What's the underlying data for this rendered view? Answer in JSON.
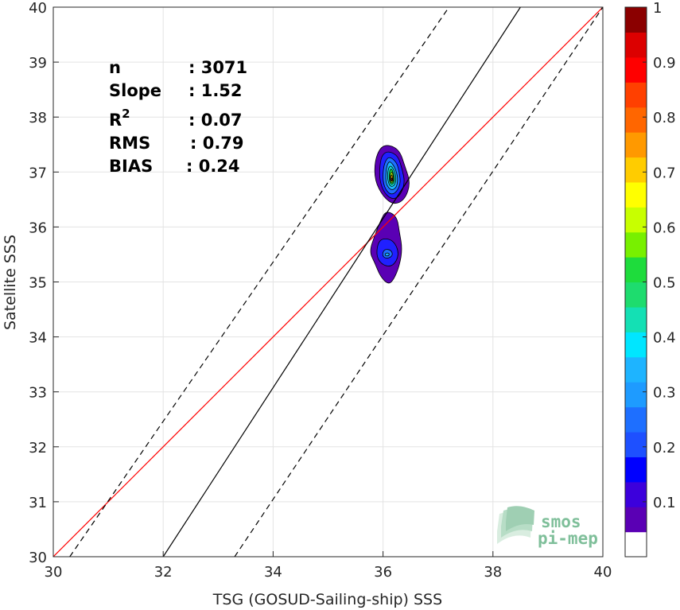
{
  "chart_data": {
    "type": "heatmap",
    "title": "",
    "xlabel": "TSG (GOSUD-Sailing-ship) SSS",
    "ylabel": "Satellite SSS",
    "xlim": [
      30,
      40
    ],
    "ylim": [
      30,
      40
    ],
    "x_ticks": [
      "30",
      "32",
      "34",
      "36",
      "38",
      "40"
    ],
    "y_ticks": [
      "30",
      "31",
      "32",
      "33",
      "34",
      "35",
      "36",
      "37",
      "38",
      "39",
      "40"
    ],
    "grid": true,
    "stats": [
      {
        "name": "n",
        "value": ": 3071"
      },
      {
        "name": "Slope",
        "value": ": 1.52"
      },
      {
        "name": "R",
        "sup": "2",
        "value": ": 0.07"
      },
      {
        "name": "RMS",
        "value": ": 0.79"
      },
      {
        "name": "BIAS",
        "value": ": 0.24"
      }
    ],
    "lines": {
      "identity": {
        "color": "#ff0000",
        "x": [
          30,
          40
        ],
        "y": [
          30,
          40
        ]
      },
      "regression": {
        "color": "#000000",
        "slope": 1.52,
        "x": [
          32.0,
          38.5
        ],
        "y": [
          30,
          40
        ]
      },
      "upper_bound": {
        "color": "#000000",
        "dash": true,
        "x": [
          30.3,
          37.2
        ],
        "y": [
          30,
          40
        ]
      },
      "lower_bound": {
        "color": "#000000",
        "dash": true,
        "x": [
          33.3,
          40.0
        ],
        "y": [
          30,
          40
        ]
      }
    },
    "density_blobs": [
      {
        "levels": [
          {
            "value": 0.05,
            "color": "#5a00b4",
            "points": [
              [
                36.1,
                37.5
              ],
              [
                36.3,
                37.4
              ],
              [
                36.4,
                37.1
              ],
              [
                36.5,
                36.8
              ],
              [
                36.4,
                36.5
              ],
              [
                36.2,
                36.4
              ],
              [
                36.0,
                36.55
              ],
              [
                35.85,
                36.85
              ],
              [
                35.85,
                37.2
              ],
              [
                35.95,
                37.45
              ]
            ]
          },
          {
            "value": 0.15,
            "color": "#2020ff",
            "points": [
              [
                36.1,
                37.38
              ],
              [
                36.27,
                37.3
              ],
              [
                36.35,
                37.05
              ],
              [
                36.4,
                36.8
              ],
              [
                36.3,
                36.55
              ],
              [
                36.15,
                36.5
              ],
              [
                36.0,
                36.65
              ],
              [
                35.93,
                36.9
              ],
              [
                35.95,
                37.2
              ],
              [
                36.0,
                37.33
              ]
            ]
          },
          {
            "value": 0.25,
            "color": "#1e6fff",
            "points": [
              [
                36.12,
                37.28
              ],
              [
                36.25,
                37.18
              ],
              [
                36.3,
                36.98
              ],
              [
                36.32,
                36.78
              ],
              [
                36.22,
                36.6
              ],
              [
                36.1,
                36.6
              ],
              [
                36.0,
                36.78
              ],
              [
                36.0,
                37.05
              ],
              [
                36.05,
                37.22
              ]
            ]
          },
          {
            "value": 0.35,
            "color": "#1eb4ff",
            "points": [
              [
                36.13,
                37.2
              ],
              [
                36.22,
                37.08
              ],
              [
                36.27,
                36.9
              ],
              [
                36.25,
                36.72
              ],
              [
                36.15,
                36.66
              ],
              [
                36.05,
                36.78
              ],
              [
                36.05,
                37.0
              ],
              [
                36.08,
                37.15
              ]
            ]
          },
          {
            "value": 0.45,
            "color": "#14e0d0",
            "points": [
              [
                36.14,
                37.13
              ],
              [
                36.22,
                37.0
              ],
              [
                36.24,
                36.85
              ],
              [
                36.2,
                36.74
              ],
              [
                36.12,
                36.74
              ],
              [
                36.08,
                36.88
              ],
              [
                36.09,
                37.05
              ]
            ]
          },
          {
            "value": 0.55,
            "color": "#1edc3c",
            "points": [
              [
                36.15,
                37.07
              ],
              [
                36.2,
                36.96
              ],
              [
                36.21,
                36.83
              ],
              [
                36.17,
                36.77
              ],
              [
                36.12,
                36.8
              ],
              [
                36.11,
                36.93
              ],
              [
                36.12,
                37.02
              ]
            ]
          },
          {
            "value": 0.65,
            "color": "#c8ff00",
            "points": [
              [
                36.16,
                37.02
              ],
              [
                36.19,
                36.92
              ],
              [
                36.19,
                36.83
              ],
              [
                36.15,
                36.8
              ],
              [
                36.13,
                36.85
              ],
              [
                36.13,
                36.95
              ]
            ]
          },
          {
            "value": 0.75,
            "color": "#ff9900",
            "points": [
              [
                36.16,
                36.96
              ],
              [
                36.18,
                36.88
              ],
              [
                36.17,
                36.83
              ],
              [
                36.14,
                36.84
              ],
              [
                36.14,
                36.92
              ]
            ]
          },
          {
            "value": 0.85,
            "color": "#dc0000",
            "points": [
              [
                36.16,
                36.9
              ],
              [
                36.175,
                36.86
              ],
              [
                36.16,
                36.83
              ],
              [
                36.145,
                36.86
              ]
            ]
          }
        ]
      },
      {
        "levels": [
          {
            "value": 0.05,
            "color": "#5a00b4",
            "points": [
              [
                36.05,
                36.3
              ],
              [
                36.25,
                36.2
              ],
              [
                36.3,
                35.9
              ],
              [
                36.35,
                35.6
              ],
              [
                36.3,
                35.3
              ],
              [
                36.2,
                35.05
              ],
              [
                36.1,
                34.95
              ],
              [
                35.95,
                35.1
              ],
              [
                35.85,
                35.35
              ],
              [
                35.75,
                35.55
              ],
              [
                35.85,
                35.85
              ],
              [
                35.95,
                36.1
              ]
            ]
          },
          {
            "value": 0.15,
            "color": "#2020ff",
            "points": [
              [
                36.0,
                35.8
              ],
              [
                36.2,
                35.75
              ],
              [
                36.3,
                35.5
              ],
              [
                36.18,
                35.28
              ],
              [
                36.0,
                35.3
              ],
              [
                35.88,
                35.45
              ],
              [
                35.9,
                35.7
              ]
            ]
          },
          {
            "value": 0.25,
            "color": "#1e6fff",
            "points": [
              [
                36.02,
                35.6
              ],
              [
                36.15,
                35.58
              ],
              [
                36.18,
                35.48
              ],
              [
                36.08,
                35.42
              ],
              [
                35.98,
                35.47
              ]
            ]
          },
          {
            "value": 0.35,
            "color": "#1eb4ff",
            "points": [
              [
                36.05,
                35.53
              ],
              [
                36.12,
                35.52
              ],
              [
                36.1,
                35.47
              ],
              [
                36.03,
                35.48
              ]
            ]
          }
        ]
      }
    ],
    "colorbar": {
      "min": 0,
      "max": 1,
      "tick_labels": [
        "0.1",
        "0.2",
        "0.3",
        "0.4",
        "0.5",
        "0.6",
        "0.7",
        "0.8",
        "0.9",
        "1"
      ],
      "tick_values": [
        0.1,
        0.2,
        0.3,
        0.4,
        0.5,
        0.6,
        0.7,
        0.8,
        0.9,
        1.0
      ],
      "colors": [
        "#ffffff",
        "#5a00b4",
        "#3c00dc",
        "#0000ff",
        "#1e50ff",
        "#1e6fff",
        "#1e9bff",
        "#1eb4ff",
        "#00e6ff",
        "#14e0b4",
        "#1edc6e",
        "#1edc3c",
        "#78f000",
        "#c8ff00",
        "#ffff00",
        "#ffcc00",
        "#ff9900",
        "#ff6600",
        "#ff4000",
        "#ff0000",
        "#dc0000",
        "#8b0000"
      ]
    }
  },
  "logo": {
    "line1": "smos",
    "line2": "pi-mep"
  }
}
